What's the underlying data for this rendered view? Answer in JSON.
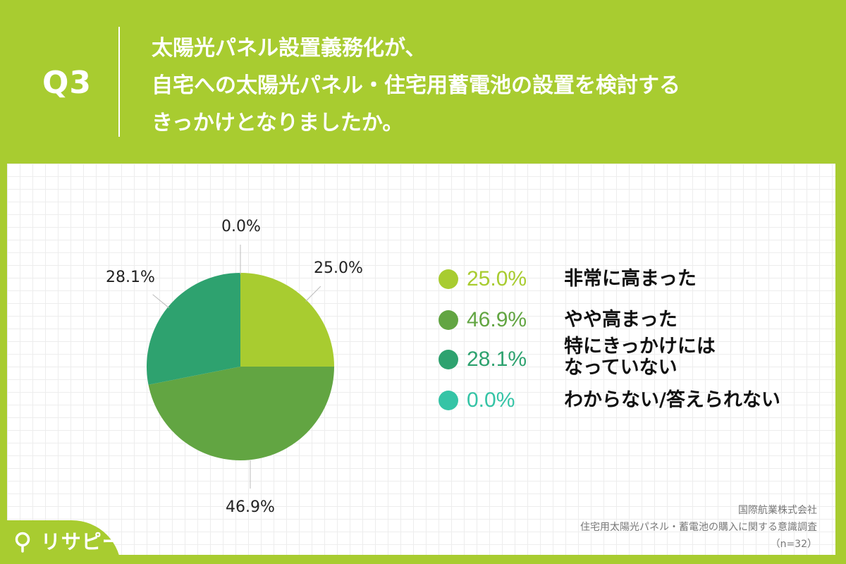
{
  "header": {
    "question_label": "Q3",
    "title_lines": [
      "太陽光パネル設置義務化が、",
      "自宅への太陽光パネル・住宅用蓄電池の設置を検討する",
      "きっかけとなりましたか。"
    ]
  },
  "chart_data": {
    "type": "pie",
    "start_angle": "12 o'clock",
    "direction": "clockwise",
    "slices": [
      {
        "label": "非常に高まった",
        "value": 25.0,
        "display": "25.0%",
        "color": "#a8cc30"
      },
      {
        "label": "やや高まった",
        "value": 46.9,
        "display": "46.9%",
        "color": "#62a542"
      },
      {
        "label": "特にきっかけにはなっていない",
        "label_lines": [
          "特にきっかけには",
          "なっていない"
        ],
        "value": 28.1,
        "display": "28.1%",
        "color": "#2ea26f"
      },
      {
        "label": "わからない/答えられない",
        "value": 0.0,
        "display": "0.0%",
        "color": "#35c4a6"
      }
    ],
    "legend_placement": "right",
    "grid": true
  },
  "source": {
    "company": "国際航業株式会社",
    "survey": "住宅用太陽光パネル・蓄電池の購入に関する意識調査",
    "sample": "（n=32）"
  },
  "logo": {
    "text": "リサピー",
    "icon": "location-pin-icon",
    "color": "#ffffff"
  }
}
